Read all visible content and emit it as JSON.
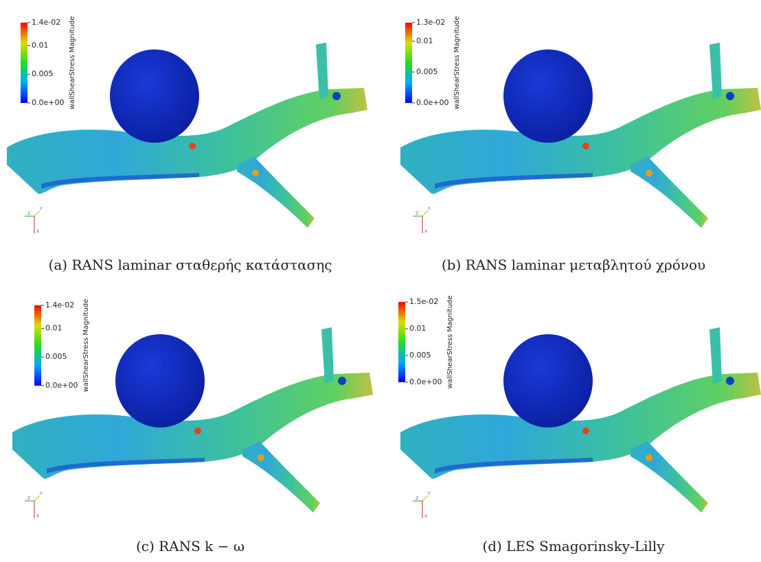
{
  "panels": [
    {
      "caption": "(a) RANS laminar σταθερής κατάστασης",
      "colorbar": {
        "title": "wallShearStress Magnitude",
        "ticks": [
          {
            "value": 0.014,
            "label": "1.4e-02"
          },
          0.01,
          0.005,
          {
            "value": 0,
            "label": "0.0e+00"
          }
        ]
      },
      "axes": [
        "Y",
        "Z",
        "X"
      ]
    },
    {
      "caption": "(b) RANS laminar μεταβλητού χρόνου",
      "colorbar": {
        "title": "wallShearStress Magnitude",
        "ticks": [
          {
            "value": 0.013,
            "label": "1.3e-02"
          },
          0.01,
          0.005,
          {
            "value": 0,
            "label": "0.0e+00"
          }
        ]
      },
      "axes": [
        "Y",
        "Z",
        "X"
      ]
    },
    {
      "caption": "(c) RANS k − ω",
      "colorbar": {
        "title": "wallShearStress Magnitude",
        "ticks": [
          {
            "value": 0.014,
            "label": "1.4e-02"
          },
          0.01,
          0.005,
          {
            "value": 0,
            "label": "0.0e+00"
          }
        ]
      },
      "axes": [
        "Y",
        "Z",
        "X"
      ]
    },
    {
      "caption": "(d) LES Smagorinsky-Lilly",
      "colorbar": {
        "title": "wallShearStress Magnitude",
        "ticks": [
          {
            "value": 0.015,
            "label": "1.5e-02"
          },
          0.01,
          0.005,
          {
            "value": 0,
            "label": "0.0e+00"
          }
        ]
      },
      "axes": [
        "Y",
        "Z",
        "X"
      ]
    }
  ]
}
